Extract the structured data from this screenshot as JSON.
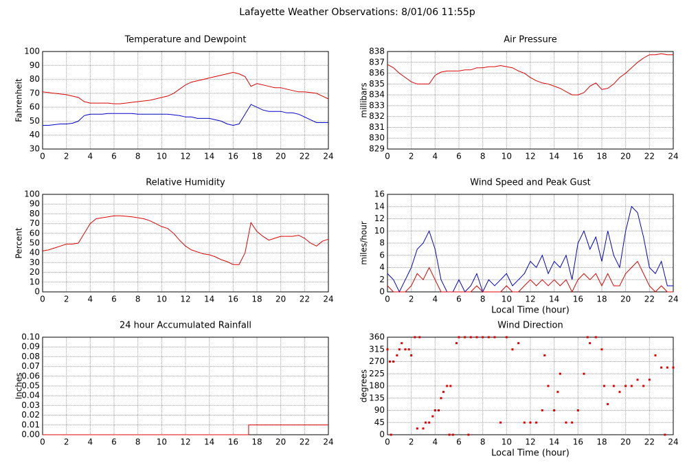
{
  "title": "Lafayette Weather Observations: 8/01/06 11:55p",
  "chart_data": [
    {
      "type": "line",
      "title": "Temperature and Dewpoint",
      "ylabel": "Fahrenheit",
      "x": [
        0,
        0.5,
        1,
        1.5,
        2,
        2.5,
        3,
        3.5,
        4,
        4.5,
        5,
        5.5,
        6,
        6.5,
        7,
        7.5,
        8,
        8.5,
        9,
        9.5,
        10,
        10.5,
        11,
        11.5,
        12,
        12.5,
        13,
        13.5,
        14,
        14.5,
        15,
        15.5,
        16,
        16.5,
        17,
        17.5,
        18,
        18.5,
        19,
        19.5,
        20,
        20.5,
        21,
        21.5,
        22,
        22.5,
        23,
        23.5,
        24
      ],
      "series": [
        {
          "color": "#dd0000",
          "values": [
            71,
            70.5,
            70,
            69.5,
            69,
            68,
            67,
            64,
            63,
            63,
            63,
            63,
            62.5,
            62.5,
            63,
            63.5,
            64,
            64.5,
            65,
            66,
            67,
            68,
            70,
            73,
            76,
            78,
            79,
            80,
            81,
            82,
            83,
            84,
            85,
            84,
            82,
            75,
            77,
            76,
            75,
            74,
            74,
            73,
            72,
            71,
            71,
            70.5,
            70,
            68,
            66
          ]
        },
        {
          "color": "#0000cc",
          "values": [
            47,
            47,
            47.5,
            48,
            48,
            48.5,
            50,
            54,
            55,
            55,
            55,
            55.5,
            55.5,
            55.5,
            55.5,
            55.5,
            55,
            55,
            55,
            55,
            55,
            55,
            54.5,
            54,
            53,
            53,
            52,
            52,
            52,
            51,
            50,
            48,
            47,
            48,
            55,
            62,
            60,
            58,
            57,
            57,
            57,
            56,
            56,
            55,
            53,
            51,
            49,
            49,
            49
          ]
        }
      ],
      "xlim": [
        0,
        24
      ],
      "xticks": [
        0,
        2,
        4,
        6,
        8,
        10,
        12,
        14,
        16,
        18,
        20,
        22,
        24
      ],
      "ylim": [
        30,
        100
      ],
      "yticks": [
        30,
        40,
        50,
        60,
        70,
        80,
        90,
        100
      ],
      "grid": true
    },
    {
      "type": "line",
      "title": "Air Pressure",
      "ylabel": "millibars",
      "x": [
        0,
        0.5,
        1,
        1.5,
        2,
        2.5,
        3,
        3.5,
        4,
        4.5,
        5,
        5.5,
        6,
        6.5,
        7,
        7.5,
        8,
        8.5,
        9,
        9.5,
        10,
        10.5,
        11,
        11.5,
        12,
        12.5,
        13,
        13.5,
        14,
        14.5,
        15,
        15.5,
        16,
        16.5,
        17,
        17.5,
        18,
        18.5,
        19,
        19.5,
        20,
        20.5,
        21,
        21.5,
        22,
        22.5,
        23,
        23.5,
        24
      ],
      "series": [
        {
          "color": "#dd0000",
          "values": [
            836.8,
            836.5,
            836,
            835.6,
            835.2,
            835,
            835,
            835,
            835.8,
            836.1,
            836.2,
            836.2,
            836.2,
            836.3,
            836.3,
            836.5,
            836.5,
            836.6,
            836.6,
            836.7,
            836.6,
            836.5,
            836.2,
            836,
            835.6,
            835.3,
            835.1,
            835,
            834.8,
            834.6,
            834.3,
            834,
            834,
            834.2,
            834.8,
            835.1,
            834.5,
            834.6,
            835,
            835.6,
            836,
            836.5,
            837,
            837.4,
            837.7,
            837.7,
            837.8,
            837.7,
            837.7
          ]
        }
      ],
      "xlim": [
        0,
        24
      ],
      "xticks": [
        0,
        2,
        4,
        6,
        8,
        10,
        12,
        14,
        16,
        18,
        20,
        22,
        24
      ],
      "ylim": [
        829,
        838
      ],
      "yticks": [
        829,
        830,
        831,
        832,
        833,
        834,
        835,
        836,
        837,
        838
      ],
      "grid": true
    },
    {
      "type": "line",
      "title": "Relative Humidity",
      "ylabel": "Percent",
      "x": [
        0,
        0.5,
        1,
        1.5,
        2,
        2.5,
        3,
        3.5,
        4,
        4.5,
        5,
        5.5,
        6,
        6.5,
        7,
        7.5,
        8,
        8.5,
        9,
        9.5,
        10,
        10.5,
        11,
        11.5,
        12,
        12.5,
        13,
        13.5,
        14,
        14.5,
        15,
        15.5,
        16,
        16.5,
        17,
        17.5,
        18,
        18.5,
        19,
        19.5,
        20,
        20.5,
        21,
        21.5,
        22,
        22.5,
        23,
        23.5,
        24
      ],
      "series": [
        {
          "color": "#dd0000",
          "values": [
            42,
            43,
            45,
            47,
            49,
            49,
            50,
            60,
            70,
            75,
            76,
            77,
            78,
            78,
            77.5,
            77,
            76,
            75,
            73,
            70,
            67,
            65,
            60,
            53,
            47,
            43,
            41,
            39,
            38,
            36,
            33,
            31,
            28,
            28,
            40,
            71,
            62,
            57,
            53,
            55,
            57,
            57,
            57,
            58,
            55,
            50,
            47,
            52,
            54
          ]
        }
      ],
      "xlim": [
        0,
        24
      ],
      "xticks": [
        0,
        2,
        4,
        6,
        8,
        10,
        12,
        14,
        16,
        18,
        20,
        22,
        24
      ],
      "ylim": [
        0,
        100
      ],
      "yticks": [
        0,
        10,
        20,
        30,
        40,
        50,
        60,
        70,
        80,
        90,
        100
      ],
      "grid": true
    },
    {
      "type": "line",
      "title": "Wind Speed and Peak Gust",
      "ylabel": "miles/hour",
      "xlabel": "Local Time (hour)",
      "x": [
        0,
        0.5,
        1,
        1.5,
        2,
        2.5,
        3,
        3.5,
        4,
        4.5,
        5,
        5.5,
        6,
        6.5,
        7,
        7.5,
        8,
        8.5,
        9,
        9.5,
        10,
        10.5,
        11,
        11.5,
        12,
        12.5,
        13,
        13.5,
        14,
        14.5,
        15,
        15.5,
        16,
        16.5,
        17,
        17.5,
        18,
        18.5,
        19,
        19.5,
        20,
        20.5,
        21,
        21.5,
        22,
        22.5,
        23,
        23.5,
        24
      ],
      "series": [
        {
          "color": "#0000cc",
          "values": [
            3,
            2,
            0,
            2,
            4,
            7,
            8,
            10,
            7,
            2,
            0,
            0,
            2,
            0,
            1,
            3,
            0,
            2,
            1,
            2,
            3,
            1,
            2,
            3,
            5,
            4,
            6,
            3,
            5,
            4,
            6,
            2,
            8,
            10,
            7,
            9,
            5,
            10,
            6,
            4,
            10,
            14,
            13,
            9,
            4,
            3,
            5,
            1,
            1
          ]
        },
        {
          "color": "#dd0000",
          "values": [
            1,
            0,
            0,
            0,
            1,
            3,
            2,
            4,
            2,
            0,
            0,
            0,
            0,
            0,
            0,
            1,
            0,
            0,
            0,
            0,
            1,
            0,
            0,
            1,
            2,
            1,
            2,
            1,
            2,
            1,
            2,
            0,
            2,
            3,
            2,
            3,
            1,
            3,
            1,
            1,
            3,
            4,
            5,
            3,
            1,
            0,
            1,
            0,
            0
          ]
        }
      ],
      "xlim": [
        0,
        24
      ],
      "xticks": [
        0,
        2,
        4,
        6,
        8,
        10,
        12,
        14,
        16,
        18,
        20,
        22,
        24
      ],
      "ylim": [
        0,
        16
      ],
      "yticks": [
        0,
        2,
        4,
        6,
        8,
        10,
        12,
        14,
        16
      ],
      "grid": true
    },
    {
      "type": "line",
      "title": "24 hour Accumulated Rainfall",
      "ylabel": "Inches",
      "x": [
        0,
        17.3,
        17.3,
        24
      ],
      "series": [
        {
          "color": "#dd0000",
          "values": [
            0,
            0,
            0.01,
            0.01
          ]
        }
      ],
      "xlim": [
        0,
        24
      ],
      "xticks": [
        0,
        2,
        4,
        6,
        8,
        10,
        12,
        14,
        16,
        18,
        20,
        22,
        24
      ],
      "ylim": [
        0,
        0.1
      ],
      "yticks": [
        {
          "value": 0,
          "label": "0.00"
        },
        {
          "value": 0.01,
          "label": "0.01"
        },
        {
          "value": 0.02,
          "label": "0.02"
        },
        {
          "value": 0.03,
          "label": "0.03"
        },
        {
          "value": 0.04,
          "label": "0.04"
        },
        {
          "value": 0.05,
          "label": "0.05"
        },
        {
          "value": 0.06,
          "label": "0.06"
        },
        {
          "value": 0.07,
          "label": "0.07"
        },
        {
          "value": 0.08,
          "label": "0.08"
        },
        {
          "value": 0.09,
          "label": "0.09"
        },
        {
          "value": 0.1,
          "label": "0.10"
        }
      ],
      "grid": true
    },
    {
      "type": "scatter",
      "title": "Wind Direction",
      "ylabel": "degrees",
      "xlabel": "Local Time (hour)",
      "x": [
        0,
        0.2,
        0.5,
        0.8,
        1,
        1.2,
        1.5,
        1.8,
        2,
        2.3,
        2.7,
        2.5,
        3,
        3.2,
        3.5,
        3.8,
        4,
        4.3,
        4.5,
        4.7,
        5,
        5.3,
        5.5,
        5.8,
        6,
        6.5,
        7,
        7.5,
        8,
        8.5,
        9,
        9.5,
        10,
        10.5,
        11,
        11.5,
        12,
        12.5,
        13,
        13.2,
        13.5,
        14,
        14.3,
        14.5,
        15,
        15.5,
        16,
        16.5,
        16.8,
        17,
        17.5,
        18,
        18.2,
        18.5,
        19,
        19.5,
        20,
        20.5,
        21,
        21.5,
        22,
        22.5,
        23,
        23.5,
        24,
        23.3,
        0.3,
        5.2,
        6.8
      ],
      "series": [
        {
          "color": "#dd0000",
          "values": [
            315,
            270,
            270,
            293,
            315,
            338,
            315,
            315,
            293,
            360,
            360,
            23,
            23,
            45,
            45,
            68,
            90,
            90,
            135,
            158,
            180,
            180,
            0,
            338,
            360,
            360,
            360,
            360,
            360,
            360,
            360,
            45,
            360,
            315,
            338,
            45,
            45,
            45,
            90,
            293,
            180,
            90,
            158,
            225,
            45,
            45,
            90,
            225,
            360,
            338,
            360,
            315,
            180,
            113,
            180,
            158,
            180,
            180,
            203,
            180,
            203,
            293,
            248,
            248,
            248,
            0,
            0,
            0,
            0
          ]
        }
      ],
      "xlim": [
        0,
        24
      ],
      "xticks": [
        0,
        2,
        4,
        6,
        8,
        10,
        12,
        14,
        16,
        18,
        20,
        22,
        24
      ],
      "ylim": [
        0,
        360
      ],
      "yticks": [
        0,
        45,
        90,
        135,
        180,
        225,
        270,
        315,
        360
      ],
      "grid": true
    }
  ]
}
